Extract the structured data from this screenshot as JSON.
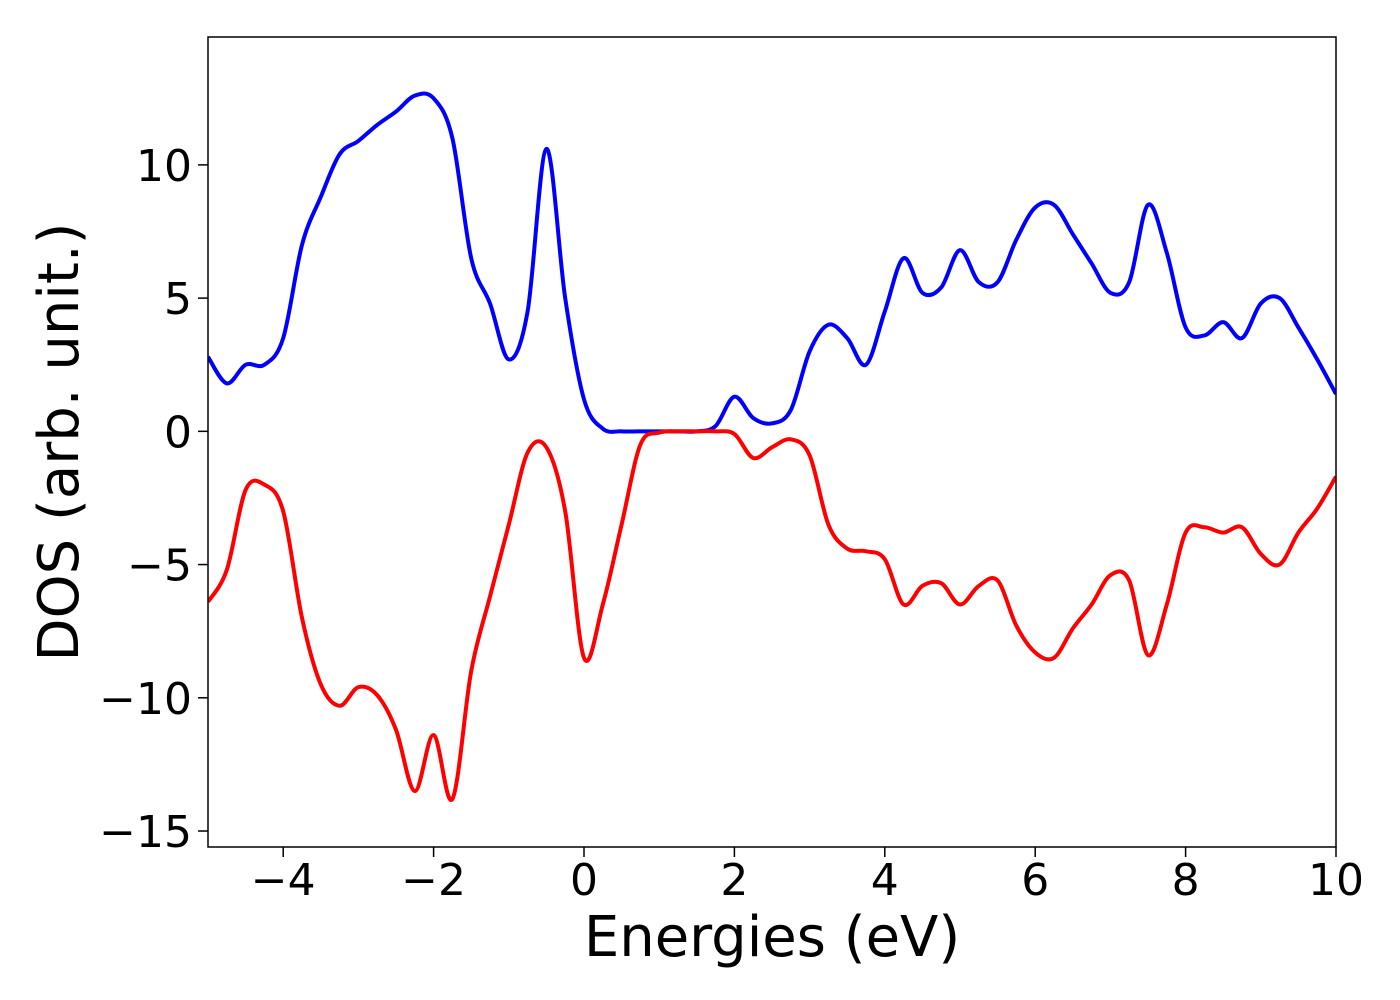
{
  "chart_data": {
    "type": "line",
    "xlabel": "Energies (eV)",
    "ylabel": "DOS (arb. unit.)",
    "x": [
      -5,
      -4.75,
      -4.5,
      -4.25,
      -4,
      -3.75,
      -3.5,
      -3.25,
      -3,
      -2.75,
      -2.5,
      -2.25,
      -2,
      -1.75,
      -1.5,
      -1.25,
      -1,
      -0.75,
      -0.5,
      -0.25,
      0,
      0.25,
      0.5,
      0.75,
      1,
      1.25,
      1.5,
      1.75,
      2,
      2.25,
      2.5,
      2.75,
      3,
      3.25,
      3.5,
      3.75,
      4,
      4.25,
      4.5,
      4.75,
      5,
      5.25,
      5.5,
      5.75,
      6,
      6.25,
      6.5,
      6.75,
      7,
      7.25,
      7.5,
      7.75,
      8,
      8.25,
      8.5,
      8.75,
      9,
      9.25,
      9.5,
      9.75,
      10
    ],
    "series": [
      {
        "color": "#0000ff",
        "values": [
          2.8,
          1.8,
          2.5,
          2.5,
          3.5,
          7.0,
          8.8,
          10.4,
          10.9,
          11.5,
          12.0,
          12.6,
          12.5,
          11.0,
          6.5,
          4.8,
          2.7,
          4.5,
          10.6,
          5.0,
          1.2,
          0.1,
          0,
          0,
          0,
          0,
          0,
          0.2,
          1.3,
          0.5,
          0.3,
          0.8,
          3.0,
          4.0,
          3.5,
          2.5,
          4.5,
          6.5,
          5.2,
          5.4,
          6.8,
          5.6,
          5.6,
          7.2,
          8.4,
          8.5,
          7.4,
          6.3,
          5.2,
          5.6,
          8.5,
          6.7,
          3.9,
          3.6,
          4.1,
          3.5,
          4.8,
          5.0,
          3.9,
          2.7,
          1.4
        ]
      },
      {
        "color": "#ff0000",
        "values": [
          -6.4,
          -5.2,
          -2.2,
          -2.0,
          -3.0,
          -7.0,
          -9.5,
          -10.3,
          -9.6,
          -9.9,
          -11.2,
          -13.5,
          -11.4,
          -13.8,
          -9.0,
          -6.2,
          -3.5,
          -0.8,
          -0.6,
          -3.0,
          -8.5,
          -6.5,
          -3.5,
          -0.5,
          -0.05,
          0,
          0,
          0,
          -0.1,
          -1.0,
          -0.6,
          -0.3,
          -0.9,
          -3.5,
          -4.4,
          -4.5,
          -4.8,
          -6.5,
          -5.8,
          -5.7,
          -6.5,
          -5.8,
          -5.6,
          -7.3,
          -8.3,
          -8.5,
          -7.4,
          -6.5,
          -5.4,
          -5.6,
          -8.4,
          -6.5,
          -3.8,
          -3.6,
          -3.8,
          -3.6,
          -4.6,
          -5.0,
          -3.8,
          -2.9,
          -1.7
        ]
      }
    ],
    "xlim": [
      -5,
      10
    ],
    "xticks": [
      {
        "value": -4,
        "label": "−4"
      },
      {
        "value": -2,
        "label": "−2"
      },
      0,
      2,
      4,
      6,
      8,
      10
    ],
    "ylim": [
      -15.6,
      14.8
    ],
    "yticks": [
      {
        "value": -15,
        "label": "−15"
      },
      {
        "value": -10,
        "label": "−10"
      },
      {
        "value": -5,
        "label": "−5"
      },
      0,
      5,
      10
    ],
    "grid": false
  }
}
